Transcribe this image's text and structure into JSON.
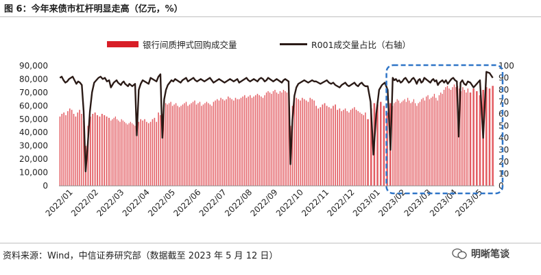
{
  "title": "图 6：今年来债市杠杆明显走高（亿元，%）",
  "legend": {
    "bar": "银行间质押式回购成交量",
    "line": "R001成交量占比（右轴）"
  },
  "source": "资料来源：Wind，中信证券研究部（数据截至 2023 年 5 月 12 日）",
  "brand": "明晰笔谈",
  "colors": {
    "bar": "#d81e27",
    "line": "#2a1a16",
    "highlight": "#2f75c7"
  },
  "chart_data": {
    "type": "bar",
    "combo": "bar-line-dual-axis",
    "x_tick_labels": [
      "2022/01",
      "2022/02",
      "2022/03",
      "2022/04",
      "2022/05",
      "2022/06",
      "2022/07",
      "2022/08",
      "2022/09",
      "2022/10",
      "2022/11",
      "2022/12",
      "2023/01",
      "2023/02",
      "2023/03",
      "2023/04",
      "2023/05"
    ],
    "y_left": {
      "lim": [
        0,
        90000
      ],
      "ticks": [
        "0",
        "10,000",
        "20,000",
        "30,000",
        "40,000",
        "50,000",
        "60,000",
        "70,000",
        "80,000",
        "90,000"
      ]
    },
    "y_right": {
      "lim": [
        0,
        100
      ],
      "ticks": [
        "0",
        "10",
        "20",
        "30",
        "40",
        "50",
        "60",
        "70",
        "80",
        "90",
        "100"
      ]
    },
    "highlight_range": [
      "2023/02",
      "2023/05"
    ],
    "series": [
      {
        "name": "银行间质押式回购成交量",
        "kind": "bar",
        "axis": "left",
        "months": [
          {
            "m": "2022/01",
            "values": [
              52000,
              54000,
              55000,
              53000,
              56000,
              58000,
              57000,
              54000,
              52000,
              55000,
              57000,
              54000,
              49000
            ]
          },
          {
            "m": "2022/02",
            "values": [
              30000,
              45000,
              52000,
              54000,
              55000,
              53000,
              52000,
              54000,
              53000,
              52000,
              51000
            ]
          },
          {
            "m": "2022/03",
            "values": [
              49000,
              50000,
              51000,
              52000,
              50000,
              49000,
              48000,
              50000,
              49000,
              48000,
              47000,
              46000,
              47000,
              48000,
              47000,
              46000,
              45000
            ]
          },
          {
            "m": "2022/04",
            "values": [
              40000,
              48000,
              50000,
              49000,
              50000,
              48000,
              47000,
              48000,
              50000,
              51000,
              48000,
              55000,
              53000
            ]
          },
          {
            "m": "2022/05",
            "values": [
              54000,
              60000,
              62000,
              61000,
              62000,
              63000,
              60000,
              61000,
              62000,
              60000,
              59000,
              60000,
              61000,
              62000,
              63000
            ]
          },
          {
            "m": "2022/06",
            "values": [
              60000,
              61000,
              62000,
              63000,
              64000,
              61000,
              62000,
              63000,
              60000,
              61000,
              62000,
              63000,
              62000,
              61000,
              60000
            ]
          },
          {
            "m": "2022/07",
            "values": [
              63000,
              64000,
              65000,
              64000,
              66000,
              65000,
              64000,
              65000,
              67000,
              66000,
              65000,
              64000,
              66000,
              65000
            ]
          },
          {
            "m": "2022/08",
            "values": [
              65000,
              66000,
              67000,
              68000,
              66000,
              67000,
              68000,
              66000,
              67000,
              68000,
              69000,
              68000,
              67000,
              66000
            ]
          },
          {
            "m": "2022/09",
            "values": [
              68000,
              70000,
              71000,
              70000,
              69000,
              71000,
              72000,
              70000,
              69000,
              71000,
              70000,
              72000,
              71000,
              70000,
              71000
            ]
          },
          {
            "m": "2022/10",
            "values": [
              45000,
              60000,
              65000,
              66000,
              65000,
              64000,
              66000,
              65000,
              64000,
              63000,
              66000,
              65000,
              64000
            ]
          },
          {
            "m": "2022/11",
            "values": [
              60000,
              58000,
              59000,
              61000,
              62000,
              60000,
              59000,
              58000,
              60000,
              61000,
              57000,
              58000
            ]
          },
          {
            "m": "2022/12",
            "values": [
              56000,
              57000,
              58000,
              56000,
              55000,
              57000,
              58000,
              59000,
              57000,
              56000,
              55000,
              54000,
              53000,
              55000
            ]
          },
          {
            "m": "2023/01",
            "values": [
              50000,
              58000,
              62000,
              61000,
              63000,
              60000,
              55000,
              62000
            ]
          },
          {
            "m": "2023/02",
            "values": [
              60000,
              62000,
              63000,
              65000,
              64000,
              62000,
              63000,
              64000,
              65000,
              63000,
              66000,
              64000,
              62000,
              63000,
              65000,
              62000,
              60000
            ]
          },
          {
            "m": "2023/03",
            "values": [
              62000,
              63000,
              65000,
              66000,
              64000,
              67000,
              68000,
              65000,
              66000,
              67000,
              69000,
              66000,
              64000,
              68000,
              70000,
              69000
            ]
          },
          {
            "m": "2023/04",
            "values": [
              72000,
              74000,
              75000,
              73000,
              72000,
              74000,
              76000,
              74000,
              75000,
              73000,
              71000,
              74000,
              72000,
              70000,
              73000
            ]
          },
          {
            "m": "2023/05",
            "values": [
              70000,
              73000,
              71000,
              68000,
              72000,
              74000,
              73000,
              75000
            ]
          }
        ]
      },
      {
        "name": "R001成交量占比（右轴）",
        "kind": "line",
        "axis": "right",
        "months": [
          {
            "m": "2022/01",
            "values": [
              90,
              91,
              88,
              86,
              87,
              89,
              90,
              91,
              88,
              85,
              87,
              86,
              84,
              62
            ]
          },
          {
            "m": "2022/02",
            "values": [
              12,
              35,
              62,
              78,
              86,
              88,
              90,
              91,
              89,
              90,
              87,
              88
            ]
          },
          {
            "m": "2022/03",
            "values": [
              82,
              84,
              86,
              87,
              88,
              86,
              85,
              84,
              86,
              87,
              85,
              84,
              83,
              85,
              84,
              83,
              84,
              85
            ]
          },
          {
            "m": "2022/04",
            "values": [
              42,
              80,
              85,
              88,
              87,
              86,
              85,
              90,
              89,
              88,
              87,
              91,
              93
            ]
          },
          {
            "m": "2022/05",
            "values": [
              40,
              72,
              80,
              84,
              86,
              88,
              87,
              89,
              88,
              87,
              86,
              88,
              89,
              90
            ]
          },
          {
            "m": "2022/06",
            "values": [
              87,
              88,
              89,
              90,
              88,
              87,
              88,
              89,
              88,
              87,
              88,
              89,
              90,
              88
            ]
          },
          {
            "m": "2022/07",
            "values": [
              86,
              87,
              88,
              89,
              88,
              87,
              86,
              87,
              88,
              89,
              88,
              87,
              88,
              89
            ]
          },
          {
            "m": "2022/08",
            "values": [
              86,
              87,
              88,
              89,
              90,
              88,
              87,
              88,
              89,
              88,
              87,
              89,
              90,
              89
            ]
          },
          {
            "m": "2022/09",
            "values": [
              87,
              88,
              90,
              89,
              88,
              87,
              88,
              89,
              88,
              87,
              86,
              88,
              89,
              88,
              87
            ]
          },
          {
            "m": "2022/10",
            "values": [
              18,
              55,
              75,
              82,
              85,
              86,
              87,
              88,
              87,
              86,
              87,
              88,
              87
            ]
          },
          {
            "m": "2022/11",
            "values": [
              87,
              86,
              85,
              86,
              87,
              88,
              86,
              85,
              86,
              84,
              83,
              82
            ]
          },
          {
            "m": "2022/12",
            "values": [
              84,
              85,
              86,
              84,
              83,
              84,
              85,
              86,
              84,
              83,
              85,
              86,
              84,
              83
            ]
          },
          {
            "m": "2023/01",
            "values": [
              83,
              70,
              26,
              60,
              80,
              84,
              86,
              80,
              30
            ]
          },
          {
            "m": "2023/02",
            "values": [
              90,
              88,
              89,
              87,
              88,
              86,
              87,
              89,
              90,
              88,
              86,
              87,
              89,
              90,
              88,
              85
            ]
          },
          {
            "m": "2023/03",
            "values": [
              88,
              89,
              86,
              87,
              90,
              89,
              88,
              87,
              86,
              88,
              89,
              87,
              88,
              84,
              86,
              87,
              88
            ]
          },
          {
            "m": "2023/04",
            "values": [
              86,
              88,
              85,
              87,
              89,
              90,
              88,
              87,
              41,
              86,
              88,
              85,
              84,
              87
            ]
          },
          {
            "m": "2023/05",
            "values": [
              86,
              82,
              85,
              88,
              40,
              95,
              94,
              90
            ]
          }
        ]
      }
    ]
  }
}
